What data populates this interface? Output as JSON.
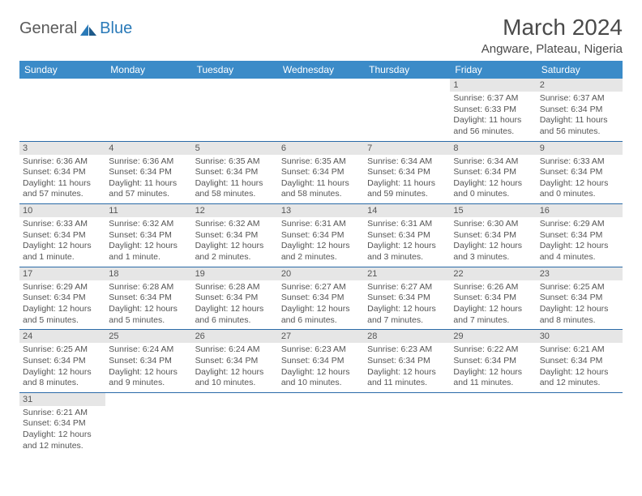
{
  "logo": {
    "text1": "General",
    "text2": "Blue"
  },
  "title": "March 2024",
  "location": "Angware, Plateau, Nigeria",
  "colors": {
    "header_bg": "#3b8bc8",
    "header_text": "#ffffff",
    "daynum_bg": "#e6e6e6",
    "border": "#2a6aa8",
    "logo_dark": "#5a5a5a",
    "logo_blue": "#2a7ab8"
  },
  "weekdays": [
    "Sunday",
    "Monday",
    "Tuesday",
    "Wednesday",
    "Thursday",
    "Friday",
    "Saturday"
  ],
  "first_weekday_index": 5,
  "days": [
    {
      "n": 1,
      "sr": "6:37 AM",
      "ss": "6:33 PM",
      "dl": "11 hours and 56 minutes."
    },
    {
      "n": 2,
      "sr": "6:37 AM",
      "ss": "6:34 PM",
      "dl": "11 hours and 56 minutes."
    },
    {
      "n": 3,
      "sr": "6:36 AM",
      "ss": "6:34 PM",
      "dl": "11 hours and 57 minutes."
    },
    {
      "n": 4,
      "sr": "6:36 AM",
      "ss": "6:34 PM",
      "dl": "11 hours and 57 minutes."
    },
    {
      "n": 5,
      "sr": "6:35 AM",
      "ss": "6:34 PM",
      "dl": "11 hours and 58 minutes."
    },
    {
      "n": 6,
      "sr": "6:35 AM",
      "ss": "6:34 PM",
      "dl": "11 hours and 58 minutes."
    },
    {
      "n": 7,
      "sr": "6:34 AM",
      "ss": "6:34 PM",
      "dl": "11 hours and 59 minutes."
    },
    {
      "n": 8,
      "sr": "6:34 AM",
      "ss": "6:34 PM",
      "dl": "12 hours and 0 minutes."
    },
    {
      "n": 9,
      "sr": "6:33 AM",
      "ss": "6:34 PM",
      "dl": "12 hours and 0 minutes."
    },
    {
      "n": 10,
      "sr": "6:33 AM",
      "ss": "6:34 PM",
      "dl": "12 hours and 1 minute."
    },
    {
      "n": 11,
      "sr": "6:32 AM",
      "ss": "6:34 PM",
      "dl": "12 hours and 1 minute."
    },
    {
      "n": 12,
      "sr": "6:32 AM",
      "ss": "6:34 PM",
      "dl": "12 hours and 2 minutes."
    },
    {
      "n": 13,
      "sr": "6:31 AM",
      "ss": "6:34 PM",
      "dl": "12 hours and 2 minutes."
    },
    {
      "n": 14,
      "sr": "6:31 AM",
      "ss": "6:34 PM",
      "dl": "12 hours and 3 minutes."
    },
    {
      "n": 15,
      "sr": "6:30 AM",
      "ss": "6:34 PM",
      "dl": "12 hours and 3 minutes."
    },
    {
      "n": 16,
      "sr": "6:29 AM",
      "ss": "6:34 PM",
      "dl": "12 hours and 4 minutes."
    },
    {
      "n": 17,
      "sr": "6:29 AM",
      "ss": "6:34 PM",
      "dl": "12 hours and 5 minutes."
    },
    {
      "n": 18,
      "sr": "6:28 AM",
      "ss": "6:34 PM",
      "dl": "12 hours and 5 minutes."
    },
    {
      "n": 19,
      "sr": "6:28 AM",
      "ss": "6:34 PM",
      "dl": "12 hours and 6 minutes."
    },
    {
      "n": 20,
      "sr": "6:27 AM",
      "ss": "6:34 PM",
      "dl": "12 hours and 6 minutes."
    },
    {
      "n": 21,
      "sr": "6:27 AM",
      "ss": "6:34 PM",
      "dl": "12 hours and 7 minutes."
    },
    {
      "n": 22,
      "sr": "6:26 AM",
      "ss": "6:34 PM",
      "dl": "12 hours and 7 minutes."
    },
    {
      "n": 23,
      "sr": "6:25 AM",
      "ss": "6:34 PM",
      "dl": "12 hours and 8 minutes."
    },
    {
      "n": 24,
      "sr": "6:25 AM",
      "ss": "6:34 PM",
      "dl": "12 hours and 8 minutes."
    },
    {
      "n": 25,
      "sr": "6:24 AM",
      "ss": "6:34 PM",
      "dl": "12 hours and 9 minutes."
    },
    {
      "n": 26,
      "sr": "6:24 AM",
      "ss": "6:34 PM",
      "dl": "12 hours and 10 minutes."
    },
    {
      "n": 27,
      "sr": "6:23 AM",
      "ss": "6:34 PM",
      "dl": "12 hours and 10 minutes."
    },
    {
      "n": 28,
      "sr": "6:23 AM",
      "ss": "6:34 PM",
      "dl": "12 hours and 11 minutes."
    },
    {
      "n": 29,
      "sr": "6:22 AM",
      "ss": "6:34 PM",
      "dl": "12 hours and 11 minutes."
    },
    {
      "n": 30,
      "sr": "6:21 AM",
      "ss": "6:34 PM",
      "dl": "12 hours and 12 minutes."
    },
    {
      "n": 31,
      "sr": "6:21 AM",
      "ss": "6:34 PM",
      "dl": "12 hours and 12 minutes."
    }
  ],
  "labels": {
    "sunrise": "Sunrise:",
    "sunset": "Sunset:",
    "daylight": "Daylight:"
  }
}
